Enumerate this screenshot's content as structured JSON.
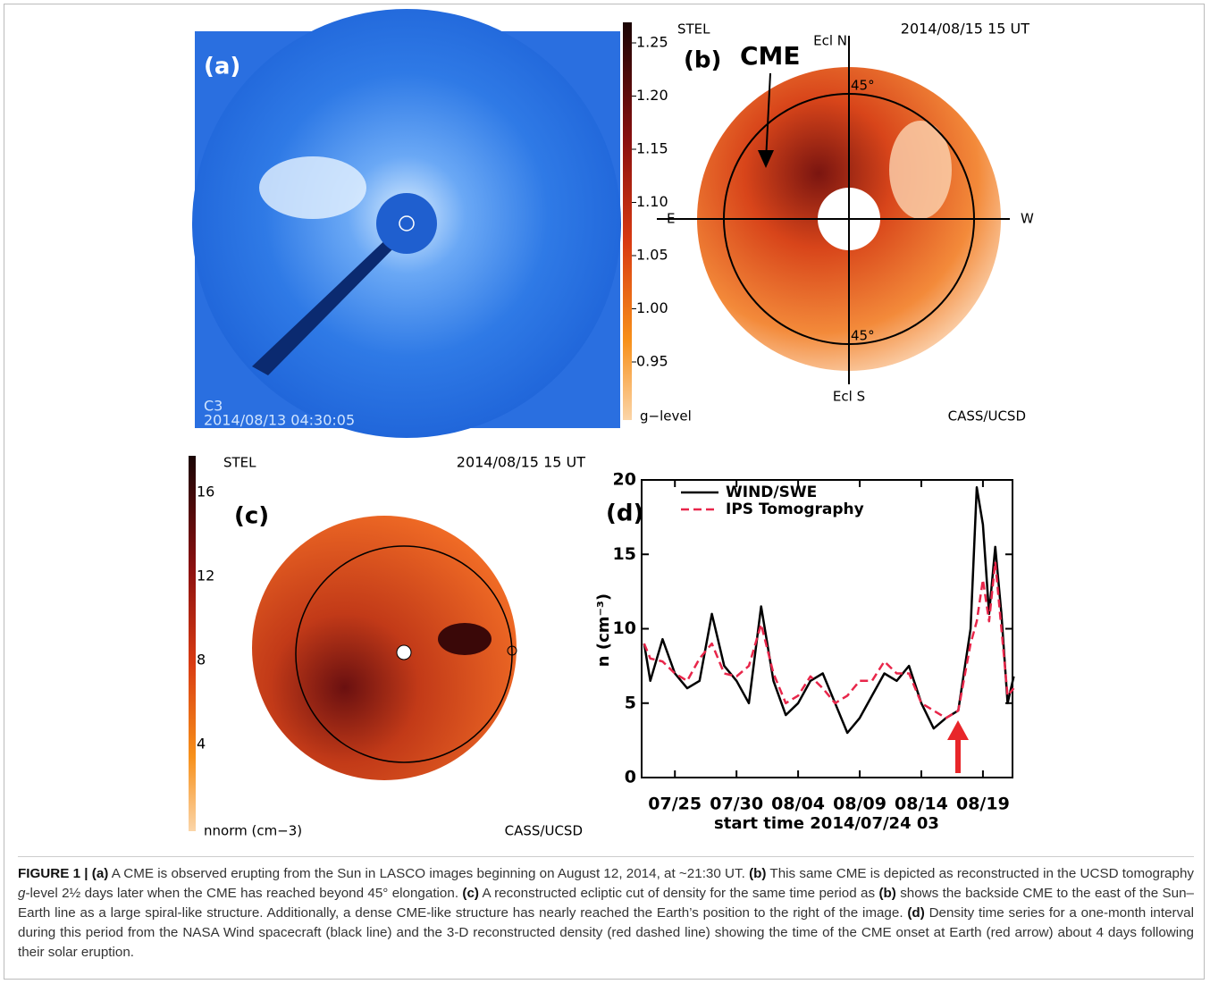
{
  "figure": {
    "a": {
      "label": "(a)",
      "instrument": "C3",
      "timestamp": "2014/08/13 04:30:05"
    },
    "b": {
      "colorbar_ticks": [
        "1.25",
        "1.20",
        "1.15",
        "1.10",
        "1.05",
        "1.00",
        "0.95"
      ],
      "colorbar_label": "g−level",
      "source": "STEL",
      "date": "2014/08/15 15 UT",
      "label": "(b)",
      "annotation": "CME",
      "north": "Ecl N",
      "south": "Ecl S",
      "east": "E",
      "west": "W",
      "elongation_top": "45°",
      "elongation_bottom": "45°",
      "credit": "CASS/UCSD"
    },
    "c": {
      "colorbar_ticks": [
        "16",
        "12",
        "8",
        "4"
      ],
      "colorbar_label": "nnorm (cm−3)",
      "source": "STEL",
      "date": "2014/08/15 15 UT",
      "label": "(c)",
      "credit": "CASS/UCSD"
    }
  },
  "chart_data": {
    "type": "line",
    "label": "(d)",
    "xlabel": "start time 2014/07/24 03",
    "ylabel": "n (cm⁻³)",
    "x": [
      -1.5,
      -1,
      0,
      1,
      2,
      3,
      4,
      5,
      6,
      7,
      8,
      9,
      10,
      11,
      12,
      13,
      14,
      15,
      16,
      17,
      18,
      19,
      20,
      21,
      22,
      23,
      24,
      25,
      25.5,
      26,
      26.5,
      27,
      27.5,
      28,
      28.5
    ],
    "series": [
      {
        "name": "WIND/SWE",
        "color": "#000000",
        "dash": false,
        "values": [
          9,
          6.5,
          9.3,
          7,
          6,
          6.5,
          11,
          7.5,
          6.5,
          5,
          11.5,
          6.5,
          4.2,
          5,
          6.5,
          7,
          5,
          3,
          4,
          5.5,
          7,
          6.5,
          7.5,
          5,
          3.3,
          4,
          4.5,
          10,
          19.5,
          17,
          11,
          15.5,
          11,
          5,
          6.8
        ]
      },
      {
        "name": "IPS Tomography",
        "color": "#e8264a",
        "dash": true,
        "values": [
          9,
          8,
          7.8,
          7,
          6.5,
          8,
          9,
          7,
          6.8,
          7.5,
          10.3,
          7,
          5,
          5.5,
          6.8,
          6,
          5,
          5.5,
          6.5,
          6.5,
          7.8,
          7,
          7,
          5,
          4.5,
          4,
          4.5,
          9,
          10.5,
          13.3,
          10.5,
          14.5,
          10,
          5.5,
          6
        ]
      }
    ],
    "xlim": [
      -1.7,
      28.4
    ],
    "xticks": [
      {
        "value": 1,
        "label": "07/25"
      },
      {
        "value": 6,
        "label": "07/30"
      },
      {
        "value": 11,
        "label": "08/04"
      },
      {
        "value": 16,
        "label": "08/09"
      },
      {
        "value": 21,
        "label": "08/14"
      },
      {
        "value": 26,
        "label": "08/19"
      }
    ],
    "ylim": [
      0,
      20
    ],
    "yticks": [
      0,
      5,
      10,
      15,
      20
    ]
  },
  "caption": [
    "FIGURE 1 | (a)",
    " A CME is observed erupting from the Sun in LASCO images beginning on August 12, 2014, at ~21:30 UT. ",
    "(b)",
    " This same CME is depicted as reconstructed in the UCSD tomography ",
    "g",
    "-level 2½ days later when the CME has reached beyond 45° elongation. ",
    "(c)",
    " A reconstructed ecliptic cut of density for the same time period as ",
    "(b)",
    " shows the backside CME to the east of the Sun–Earth line as a large spiral-like structure. Additionally, a dense CME-like structure has nearly reached the Earth’s position to the right of the image. ",
    "(d)",
    " Density time series for a one-month interval during this period from the NASA Wind spacecraft (black line) and the 3-D reconstructed density (red dashed line) showing the time of the CME onset at Earth (red arrow) about 4 days following their solar eruption."
  ]
}
